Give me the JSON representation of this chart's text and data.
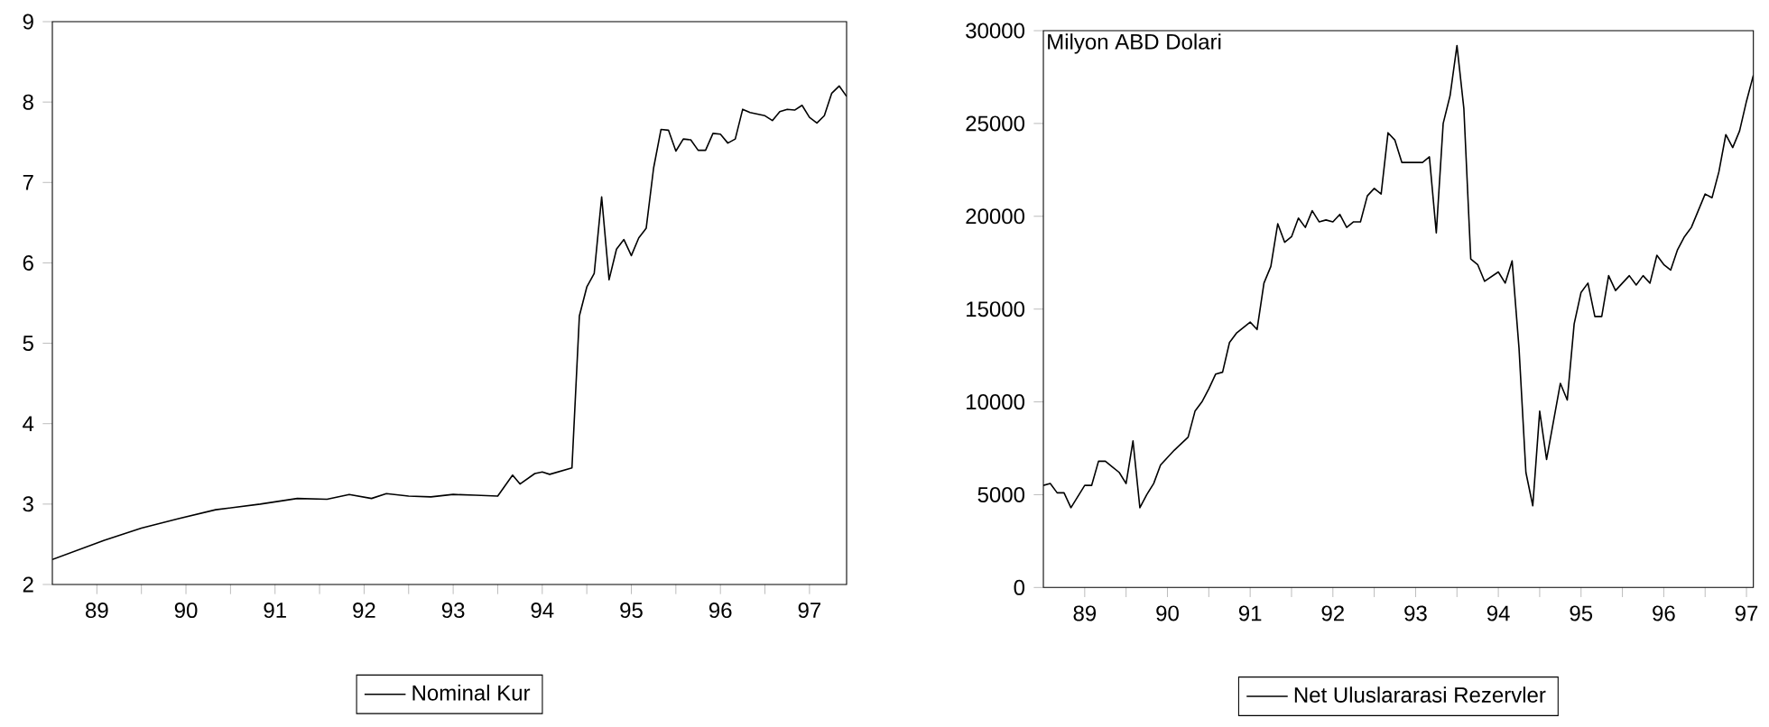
{
  "chart_data": [
    {
      "type": "line",
      "x": [
        "1989-01",
        "1989-08",
        "1990-01",
        "1990-06",
        "1990-11",
        "1991-05",
        "1991-10",
        "1992-02",
        "1992-05",
        "1992-08",
        "1992-10",
        "1993-01",
        "1993-04",
        "1993-07",
        "1993-10",
        "1994-01",
        "1994-03",
        "1994-04",
        "1994-06",
        "1994-07",
        "1994-08",
        "1994-11",
        "1994-12",
        "1995-01",
        "1995-02",
        "1995-03",
        "1995-04",
        "1995-05",
        "1995-06",
        "1995-07",
        "1995-08",
        "1995-09",
        "1995-10",
        "1995-11",
        "1995-12",
        "1996-01",
        "1996-02",
        "1996-03",
        "1996-04",
        "1996-05",
        "1996-06",
        "1996-07",
        "1996-08",
        "1996-09",
        "1996-10",
        "1996-11",
        "1996-12",
        "1997-01",
        "1997-02",
        "1997-03",
        "1997-04",
        "1997-05",
        "1997-06",
        "1997-07",
        "1997-08",
        "1997-09",
        "1997-10",
        "1997-11",
        "1997-12"
      ],
      "series": [
        {
          "name": "Nominal Kur",
          "color": "#000000",
          "values": [
            2.31,
            2.55,
            2.7,
            2.82,
            2.93,
            3.0,
            3.07,
            3.06,
            3.12,
            3.07,
            3.13,
            3.1,
            3.09,
            3.12,
            3.11,
            3.1,
            3.36,
            3.25,
            3.38,
            3.4,
            3.37,
            3.45,
            5.34,
            5.7,
            5.87,
            6.82,
            5.79,
            6.17,
            6.29,
            6.09,
            6.31,
            6.43,
            7.18,
            7.66,
            7.65,
            7.39,
            7.54,
            7.53,
            7.4,
            7.4,
            7.61,
            7.6,
            7.49,
            7.54,
            7.91,
            7.87,
            7.85,
            7.83,
            7.77,
            7.88,
            7.91,
            7.9,
            7.96,
            7.81,
            7.74,
            7.83,
            8.11,
            8.2,
            8.07
          ]
        }
      ],
      "xlim": [
        "1989-01",
        "1997-12"
      ],
      "ylim": [
        2,
        9
      ],
      "yticks": [
        2,
        3,
        4,
        5,
        6,
        7,
        8,
        9
      ],
      "xticks": [
        {
          "value": "1989-07",
          "label": "89"
        },
        {
          "value": "1990-01",
          "label": null
        },
        {
          "value": "1990-07",
          "label": "90"
        },
        {
          "value": "1991-01",
          "label": null
        },
        {
          "value": "1991-07",
          "label": "91"
        },
        {
          "value": "1992-01",
          "label": null
        },
        {
          "value": "1992-07",
          "label": "92"
        },
        {
          "value": "1993-01",
          "label": null
        },
        {
          "value": "1993-07",
          "label": "93"
        },
        {
          "value": "1994-01",
          "label": null
        },
        {
          "value": "1994-07",
          "label": "94"
        },
        {
          "value": "1995-01",
          "label": null
        },
        {
          "value": "1995-07",
          "label": "95"
        },
        {
          "value": "1996-01",
          "label": null
        },
        {
          "value": "1996-07",
          "label": "96"
        },
        {
          "value": "1997-01",
          "label": null
        },
        {
          "value": "1997-07",
          "label": "97"
        }
      ],
      "legend": "bottom"
    },
    {
      "type": "line",
      "x": [
        "1989-01",
        "1989-02",
        "1989-03",
        "1989-04",
        "1989-05",
        "1989-07",
        "1989-08",
        "1989-09",
        "1989-10",
        "1989-11",
        "1989-12",
        "1990-01",
        "1990-02",
        "1990-03",
        "1990-04",
        "1990-05",
        "1990-06",
        "1990-07",
        "1990-08",
        "1990-10",
        "1990-11",
        "1990-12",
        "1991-01",
        "1991-02",
        "1991-03",
        "1991-04",
        "1991-05",
        "1991-07",
        "1991-08",
        "1991-09",
        "1991-10",
        "1991-11",
        "1991-12",
        "1992-01",
        "1992-02",
        "1992-03",
        "1992-04",
        "1992-05",
        "1992-06",
        "1992-07",
        "1992-08",
        "1992-09",
        "1992-10",
        "1992-11",
        "1992-12",
        "1993-01",
        "1993-02",
        "1993-03",
        "1993-04",
        "1993-05",
        "1993-08",
        "1993-09",
        "1993-10",
        "1993-11",
        "1993-12",
        "1994-01",
        "1994-02",
        "1994-03",
        "1994-04",
        "1994-05",
        "1994-07",
        "1994-08",
        "1994-09",
        "1994-10",
        "1994-11",
        "1994-12",
        "1995-01",
        "1995-02",
        "1995-04",
        "1995-05",
        "1995-06",
        "1995-07",
        "1995-08",
        "1995-09",
        "1995-10",
        "1995-11",
        "1995-12",
        "1996-02",
        "1996-03",
        "1996-04",
        "1996-05",
        "1996-06",
        "1996-07",
        "1996-08",
        "1996-09",
        "1996-10",
        "1996-11",
        "1997-01",
        "1997-02",
        "1997-03",
        "1997-04",
        "1997-05",
        "1997-06",
        "1997-07",
        "1997-08"
      ],
      "series": [
        {
          "name": "Net Uluslararasi Rezervler",
          "color": "#000000",
          "values": [
            5500,
            5600,
            5100,
            5100,
            4300,
            5500,
            5500,
            6800,
            6800,
            6500,
            6200,
            5600,
            7900,
            4300,
            5000,
            5600,
            6600,
            7000,
            7400,
            8100,
            9500,
            10000,
            10700,
            11500,
            11600,
            13200,
            13700,
            14300,
            13900,
            16400,
            17300,
            19600,
            18600,
            18900,
            19900,
            19400,
            20300,
            19700,
            19800,
            19700,
            20100,
            19400,
            19700,
            19700,
            21100,
            21500,
            21200,
            24500,
            24100,
            22900,
            22900,
            23200,
            19100,
            25000,
            26500,
            29200,
            25800,
            17700,
            17400,
            16500,
            17000,
            16400,
            17600,
            12900,
            6200,
            4400,
            9500,
            6900,
            11000,
            10100,
            14200,
            15900,
            16400,
            14600,
            14600,
            16800,
            16000,
            16800,
            16300,
            16800,
            16400,
            17900,
            17400,
            17100,
            18200,
            18900,
            19400,
            21200,
            21000,
            22400,
            24400,
            23700,
            24600,
            26200,
            27600
          ]
        }
      ],
      "xlim": [
        "1989-01",
        "1997-08"
      ],
      "ylim": [
        0,
        30000
      ],
      "yticks": [
        0,
        5000,
        10000,
        15000,
        20000,
        25000,
        30000
      ],
      "xticks": [
        {
          "value": "1989-07",
          "label": "89"
        },
        {
          "value": "1990-01",
          "label": null
        },
        {
          "value": "1990-07",
          "label": "90"
        },
        {
          "value": "1991-01",
          "label": null
        },
        {
          "value": "1991-07",
          "label": "91"
        },
        {
          "value": "1992-01",
          "label": null
        },
        {
          "value": "1992-07",
          "label": "92"
        },
        {
          "value": "1993-01",
          "label": null
        },
        {
          "value": "1993-07",
          "label": "93"
        },
        {
          "value": "1994-01",
          "label": null
        },
        {
          "value": "1994-07",
          "label": "94"
        },
        {
          "value": "1995-01",
          "label": null
        },
        {
          "value": "1995-07",
          "label": "95"
        },
        {
          "value": "1996-01",
          "label": null
        },
        {
          "value": "1996-07",
          "label": "96"
        },
        {
          "value": "1997-01",
          "label": null
        },
        {
          "value": "1997-07",
          "label": "97"
        }
      ],
      "annotations": [
        "Milyon ABD Dolari"
      ],
      "legend": "bottom"
    }
  ]
}
